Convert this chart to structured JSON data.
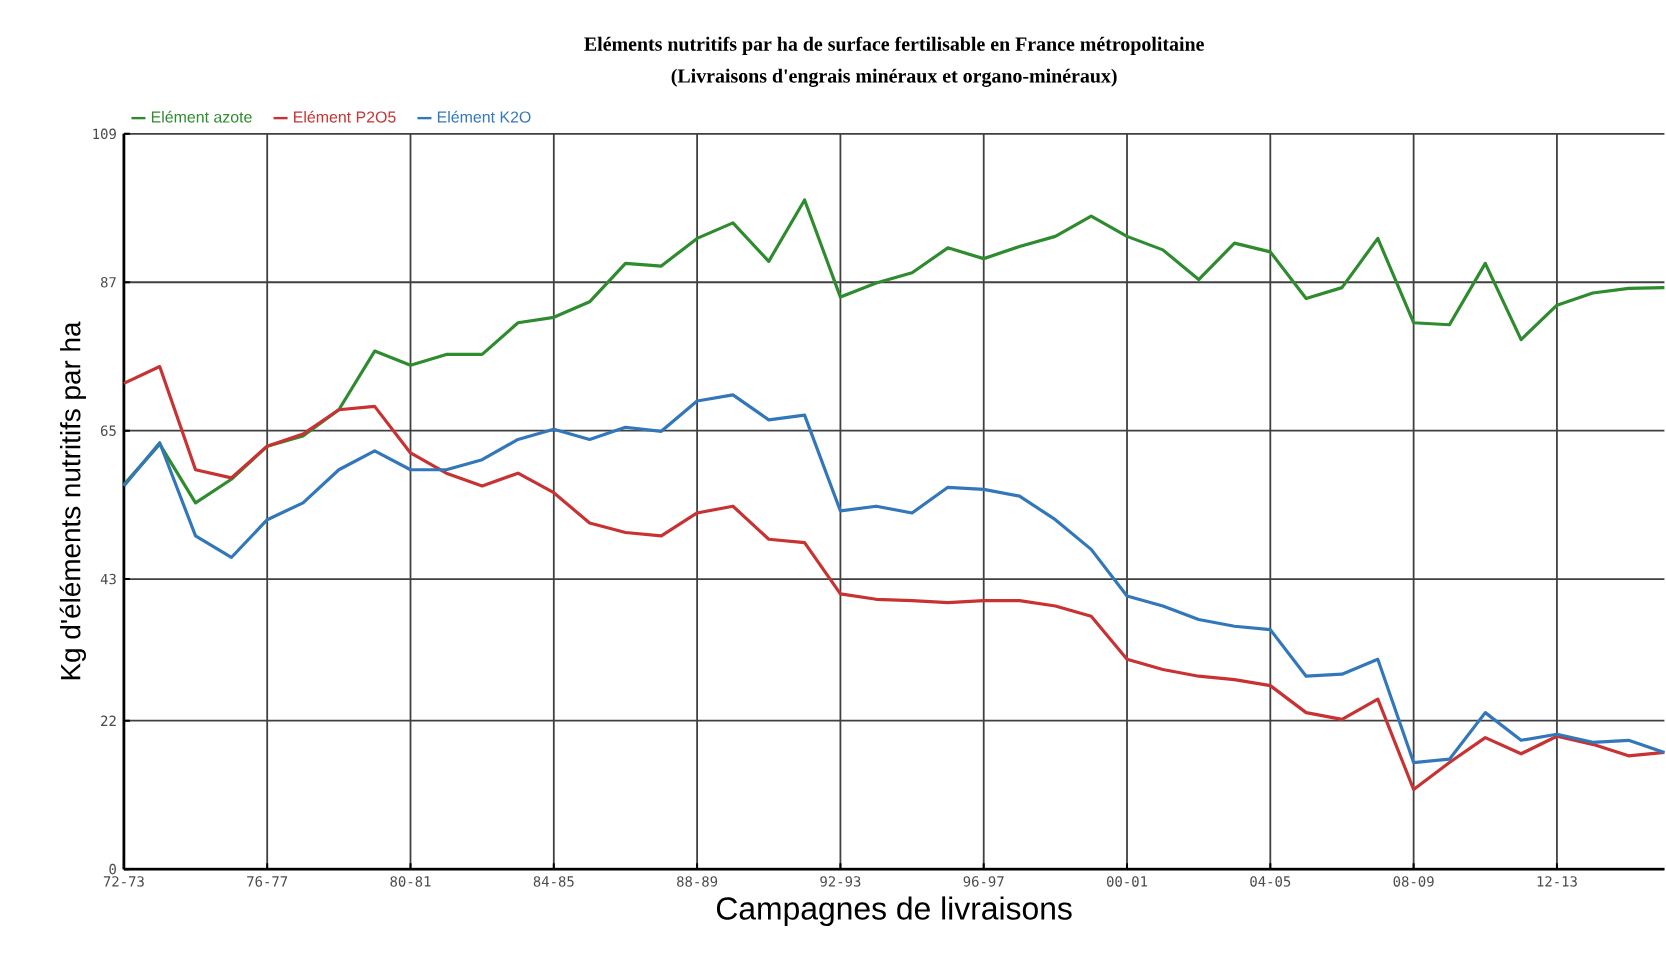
{
  "chart_data": {
    "type": "line",
    "title": "Eléments nutritifs par ha de surface fertilisable en France métropolitaine",
    "subtitle": "(Livraisons d'engrais minéraux et organo-minéraux)",
    "xlabel": "Campagnes de livraisons",
    "ylabel": "Kg d'éléments nutritifs par ha",
    "categories": [
      "72-73",
      null,
      null,
      null,
      "76-77",
      null,
      null,
      null,
      "80-81",
      null,
      null,
      null,
      "84-85",
      null,
      null,
      null,
      "88-89",
      null,
      null,
      null,
      "92-93",
      null,
      null,
      null,
      "96-97",
      null,
      null,
      null,
      "00-01",
      null,
      null,
      null,
      "04-05",
      null,
      null,
      null,
      "08-09",
      null,
      null,
      null,
      "12-13",
      null,
      null,
      null
    ],
    "series": [
      {
        "name": "Elément azote",
        "color": "#2e8b2e",
        "values": [
          57,
          63,
          54.3,
          57.8,
          62.7,
          64.2,
          68.1,
          76.8,
          74.7,
          76.3,
          76.3,
          81,
          81.8,
          84.1,
          89.8,
          89.4,
          93.5,
          95.8,
          90.1,
          99.2,
          84.8,
          86.9,
          88.4,
          92.1,
          90.5,
          92.3,
          93.8,
          96.8,
          93.8,
          91.8,
          87.4,
          92.8,
          91.5,
          84.6,
          86.2,
          93.5,
          81,
          80.7,
          89.8,
          78.5,
          83.6,
          85.4,
          86.1,
          86.2
        ]
      },
      {
        "name": "Elément P2O5",
        "color": "#c83232",
        "values": [
          72,
          74.5,
          59.2,
          58,
          62.7,
          64.5,
          68.1,
          68.6,
          61.7,
          58.7,
          56.8,
          58.7,
          55.8,
          51.3,
          49.9,
          49.4,
          52.8,
          53.8,
          48.9,
          48.4,
          40.8,
          40,
          39.8,
          39.5,
          39.8,
          39.8,
          39,
          37.5,
          31.1,
          29.6,
          28.6,
          28.1,
          27.2,
          23.2,
          22.2,
          25.2,
          11.8,
          15.8,
          19.5,
          17.1,
          19.7,
          18.5,
          16.8,
          17.3
        ]
      },
      {
        "name": "Elément K2O",
        "color": "#3377bb",
        "values": [
          56.8,
          63.2,
          49.4,
          46.2,
          51.8,
          54.3,
          59.2,
          62,
          59.2,
          59.2,
          60.7,
          63.7,
          65.2,
          63.7,
          65.5,
          64.9,
          69.4,
          70.3,
          66.6,
          67.3,
          53.1,
          53.8,
          52.8,
          56.6,
          56.3,
          55.3,
          51.8,
          47.4,
          40.5,
          39,
          37,
          36,
          35.5,
          28.6,
          28.9,
          31.1,
          15.8,
          16.3,
          23.2,
          19.1,
          20,
          18.8,
          19.1,
          17.3
        ]
      }
    ],
    "ylim": [
      0,
      109
    ],
    "yticks": [
      0,
      22,
      43,
      65,
      87,
      109
    ],
    "grid": true,
    "legend": "top left",
    "marker": "none",
    "line_style": "solid"
  }
}
